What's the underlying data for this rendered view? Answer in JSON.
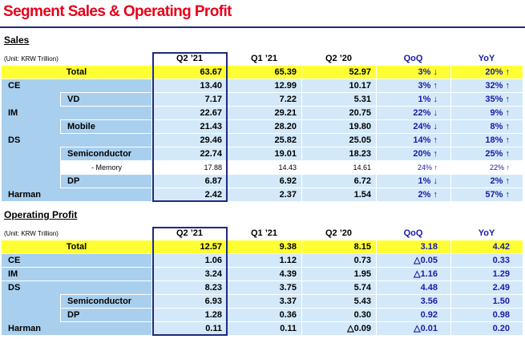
{
  "header": {
    "title": "Segment Sales & Operating Profit"
  },
  "sales": {
    "heading": "Sales",
    "unit": "(Unit: KRW Trillion)",
    "columns": [
      "Q2 ’21",
      "Q1 ’21",
      "Q2 ’20",
      "QoQ",
      "YoY"
    ],
    "rows": [
      {
        "label": "Total",
        "values": [
          "63.67",
          "65.39",
          "52.97",
          "3% ↓",
          "20% ↑"
        ]
      },
      {
        "label": "CE",
        "values": [
          "13.40",
          "12.99",
          "10.17",
          "3% ↑",
          "32% ↑"
        ],
        "children": [
          {
            "label": "VD",
            "values": [
              "7.17",
              "7.22",
              "5.31",
              "1% ↓",
              "35% ↑"
            ]
          }
        ]
      },
      {
        "label": "IM",
        "values": [
          "22.67",
          "29.21",
          "20.75",
          "22% ↓",
          "9% ↑"
        ],
        "children": [
          {
            "label": "Mobile",
            "values": [
              "21.43",
              "28.20",
              "19.80",
              "24% ↓",
              "8% ↑"
            ]
          }
        ]
      },
      {
        "label": "DS",
        "values": [
          "29.46",
          "25.82",
          "25.05",
          "14% ↑",
          "18% ↑"
        ],
        "children": [
          {
            "label": "Semiconductor",
            "values": [
              "22.74",
              "19.01",
              "18.23",
              "20% ↑",
              "25% ↑"
            ],
            "children": [
              {
                "label": "- Memory",
                "values": [
                  "17.88",
                  "14.43",
                  "14.61",
                  "24% ↑",
                  "22% ↑"
                ]
              }
            ]
          },
          {
            "label": "DP",
            "values": [
              "6.87",
              "6.92",
              "6.72",
              "1% ↓",
              "2% ↑"
            ]
          }
        ]
      },
      {
        "label": "Harman",
        "values": [
          "2.42",
          "2.37",
          "1.54",
          "2% ↑",
          "57% ↑"
        ]
      }
    ]
  },
  "operating_profit": {
    "heading": "Operating Profit",
    "unit": "(Unit: KRW Trillion)",
    "columns": [
      "Q2 ’21",
      "Q1 ’21",
      "Q2 ’20",
      "QoQ",
      "YoY"
    ],
    "rows": [
      {
        "label": "Total",
        "values": [
          "12.57",
          "9.38",
          "8.15",
          "3.18",
          "4.42"
        ]
      },
      {
        "label": "CE",
        "values": [
          "1.06",
          "1.12",
          "0.73",
          "△0.05",
          "0.33"
        ]
      },
      {
        "label": "IM",
        "values": [
          "3.24",
          "4.39",
          "1.95",
          "△1.16",
          "1.29"
        ]
      },
      {
        "label": "DS",
        "values": [
          "8.23",
          "3.75",
          "5.74",
          "4.48",
          "2.49"
        ],
        "children": [
          {
            "label": "Semiconductor",
            "values": [
              "6.93",
              "3.37",
              "5.43",
              "3.56",
              "1.50"
            ]
          },
          {
            "label": "DP",
            "values": [
              "1.28",
              "0.36",
              "0.30",
              "0.92",
              "0.98"
            ]
          }
        ]
      },
      {
        "label": "Harman",
        "values": [
          "0.11",
          "0.11",
          "△0.09",
          "△0.01",
          "0.20"
        ]
      }
    ]
  }
}
